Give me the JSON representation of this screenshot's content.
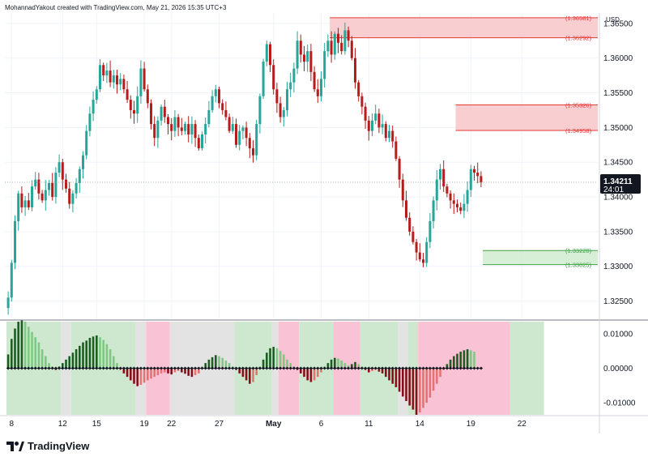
{
  "header": {
    "attribution": "MohannadYakout created with TradingView.com, May 21, 2026 15:35 UTC+3"
  },
  "brand": {
    "name": "TradingView"
  },
  "chart_data": [
    {
      "type": "candlestick",
      "title": "",
      "currency_label": "USD",
      "ylim": [
        1.3225,
        1.3665
      ],
      "yticks": [
        1.325,
        1.33,
        1.335,
        1.34,
        1.345,
        1.35,
        1.355,
        1.36,
        1.365
      ],
      "ytick_labels": [
        "1.32500",
        "1.33000",
        "1.33500",
        "1.34000",
        "1.34500",
        "1.35000",
        "1.35500",
        "1.36000",
        "1.36500"
      ],
      "xticks": [
        "8",
        "12",
        "15",
        "19",
        "22",
        "27",
        "May",
        "6",
        "11",
        "14",
        "19",
        "22"
      ],
      "current_price": {
        "label": "1.34211",
        "value": 1.34211,
        "countdown": "24:01"
      },
      "zones": [
        {
          "kind": "supply",
          "top": 1.36581,
          "bottom": 1.36292,
          "top_label": "(1.36581)",
          "bottom_label": "(1.36292)",
          "color": "#f7c5c8",
          "line": "#e53935"
        },
        {
          "kind": "supply",
          "top": 1.35326,
          "bottom": 1.34958,
          "top_label": "(1.35326)",
          "bottom_label": "(1.34958)",
          "color": "#f7c5c8",
          "line": "#e53935"
        },
        {
          "kind": "demand",
          "top": 1.33228,
          "bottom": 1.33025,
          "top_label": "(1.33228)",
          "bottom_label": "(1.33025)",
          "color": "#cfeccf",
          "line": "#43a047"
        }
      ],
      "closes": [
        1.3255,
        1.3305,
        1.3365,
        1.3405,
        1.3385,
        1.3395,
        1.3385,
        1.3415,
        1.3425,
        1.3405,
        1.3395,
        1.341,
        1.342,
        1.34,
        1.3435,
        1.345,
        1.3425,
        1.3412,
        1.339,
        1.3405,
        1.342,
        1.344,
        1.346,
        1.3495,
        1.352,
        1.354,
        1.3555,
        1.359,
        1.3575,
        1.3582,
        1.3565,
        1.3575,
        1.3562,
        1.357,
        1.3555,
        1.354,
        1.3525,
        1.352,
        1.3545,
        1.3585,
        1.3555,
        1.3535,
        1.3505,
        1.3485,
        1.351,
        1.353,
        1.3515,
        1.3505,
        1.3495,
        1.3515,
        1.35,
        1.3495,
        1.3505,
        1.349,
        1.3505,
        1.3485,
        1.347,
        1.349,
        1.3505,
        1.3525,
        1.3545,
        1.3555,
        1.3535,
        1.3525,
        1.3515,
        1.3495,
        1.3505,
        1.3475,
        1.3495,
        1.35,
        1.3485,
        1.347,
        1.346,
        1.3505,
        1.3545,
        1.3595,
        1.362,
        1.359,
        1.3555,
        1.3535,
        1.3515,
        1.3525,
        1.3555,
        1.3565,
        1.3585,
        1.3625,
        1.3605,
        1.3595,
        1.361,
        1.358,
        1.3555,
        1.3545,
        1.357,
        1.361,
        1.3625,
        1.3605,
        1.3635,
        1.3622,
        1.361,
        1.364,
        1.3625,
        1.36,
        1.3565,
        1.3545,
        1.353,
        1.351,
        1.3495,
        1.351,
        1.352,
        1.35,
        1.3505,
        1.3485,
        1.3495,
        1.348,
        1.3455,
        1.3425,
        1.3395,
        1.337,
        1.335,
        1.3335,
        1.332,
        1.331,
        1.3305,
        1.3335,
        1.3365,
        1.3395,
        1.3425,
        1.344,
        1.3415,
        1.3405,
        1.3395,
        1.339,
        1.3385,
        1.338,
        1.339,
        1.341,
        1.344,
        1.3435,
        1.343,
        1.3421
      ],
      "oscillator": {
        "ylim": [
          -0.0135,
          0.0135
        ],
        "yticks": [
          0.01,
          0.0,
          -0.01
        ],
        "ytick_labels": [
          "0.01000",
          "0.00000",
          "-0.01000"
        ],
        "values": [
          0.004,
          0.0085,
          0.0115,
          0.0135,
          0.014,
          0.0135,
          0.012,
          0.0105,
          0.009,
          0.0075,
          0.0055,
          0.0035,
          0.0015,
          0.0005,
          -0.0005,
          0.0005,
          0.0015,
          0.0025,
          0.0035,
          0.0045,
          0.0055,
          0.0065,
          0.0075,
          0.008,
          0.0088,
          0.0092,
          0.0095,
          0.009,
          0.0082,
          0.007,
          0.0055,
          0.0035,
          0.0015,
          -0.0005,
          -0.0015,
          -0.0025,
          -0.0035,
          -0.0045,
          -0.0052,
          -0.0048,
          -0.0042,
          -0.0035,
          -0.003,
          -0.0025,
          -0.002,
          -0.0015,
          -0.0012,
          -0.0015,
          -0.0018,
          -0.0012,
          -0.0008,
          -0.0012,
          -0.0016,
          -0.0022,
          -0.0025,
          -0.002,
          -0.0015,
          0.0005,
          0.0015,
          0.0025,
          0.0032,
          0.0038,
          0.0035,
          0.003,
          0.0022,
          0.0015,
          0.0005,
          -0.0005,
          -0.0015,
          -0.0025,
          -0.0035,
          -0.0045,
          -0.004,
          -0.002,
          0.0005,
          0.0025,
          0.0045,
          0.0058,
          0.0062,
          0.0058,
          0.005,
          0.004,
          0.0025,
          0.0015,
          0.0005,
          -0.0005,
          -0.0015,
          -0.0025,
          -0.0035,
          -0.004,
          -0.0035,
          -0.0025,
          -0.0012,
          0.0005,
          0.0015,
          0.0025,
          0.003,
          0.0028,
          0.0022,
          0.0015,
          0.0008,
          0.0012,
          0.0018,
          0.0012,
          0.0005,
          -0.0005,
          -0.0012,
          -0.0008,
          -0.0005,
          -0.001,
          -0.0015,
          -0.0025,
          -0.0035,
          -0.0045,
          -0.0055,
          -0.0068,
          -0.0082,
          -0.0095,
          -0.0108,
          -0.012,
          -0.0135,
          -0.0128,
          -0.0115,
          -0.01,
          -0.0085,
          -0.0065,
          -0.0045,
          -0.0025,
          -0.0005,
          0.0012,
          0.0025,
          0.0035,
          0.0042,
          0.0048,
          0.0052,
          0.0055,
          0.0052,
          0.0048
        ],
        "regimes": [
          {
            "from": 0,
            "to": 16,
            "state": "bull",
            "color": "#c8e6c9"
          },
          {
            "from": 16,
            "to": 19,
            "state": "neutral",
            "color": "#e0e0e0"
          },
          {
            "from": 19,
            "to": 38,
            "state": "bull",
            "color": "#c8e6c9"
          },
          {
            "from": 38,
            "to": 41,
            "state": "neutral",
            "color": "#e0e0e0"
          },
          {
            "from": 41,
            "to": 48,
            "state": "bear",
            "color": "#f8bbd0"
          },
          {
            "from": 48,
            "to": 67,
            "state": "neutral",
            "color": "#e0e0e0"
          },
          {
            "from": 67,
            "to": 78,
            "state": "bull",
            "color": "#c8e6c9"
          },
          {
            "from": 78,
            "to": 80,
            "state": "neutral",
            "color": "#e0e0e0"
          },
          {
            "from": 80,
            "to": 86,
            "state": "bear",
            "color": "#f8bbd0"
          },
          {
            "from": 86,
            "to": 96,
            "state": "bull",
            "color": "#c8e6c9"
          },
          {
            "from": 96,
            "to": 104,
            "state": "bear",
            "color": "#f8bbd0"
          },
          {
            "from": 104,
            "to": 115,
            "state": "bull",
            "color": "#c8e6c9"
          },
          {
            "from": 115,
            "to": 118,
            "state": "neutral",
            "color": "#e0e0e0"
          },
          {
            "from": 118,
            "to": 121,
            "state": "bull",
            "color": "#c8e6c9"
          },
          {
            "from": 121,
            "to": 148,
            "state": "bear",
            "color": "#f8bbd0"
          },
          {
            "from": 148,
            "to": 158,
            "state": "bull",
            "color": "#c8e6c9"
          }
        ]
      }
    }
  ],
  "colors": {
    "up": "#26a69a",
    "down": "#b71c1c",
    "osc_pos_dark": "#1b5e20",
    "osc_pos_light": "#81c784",
    "osc_neg_dark": "#880e1a",
    "osc_neg_light": "#e57373",
    "grid": "#f0f3fa",
    "axis_text": "#131722"
  }
}
